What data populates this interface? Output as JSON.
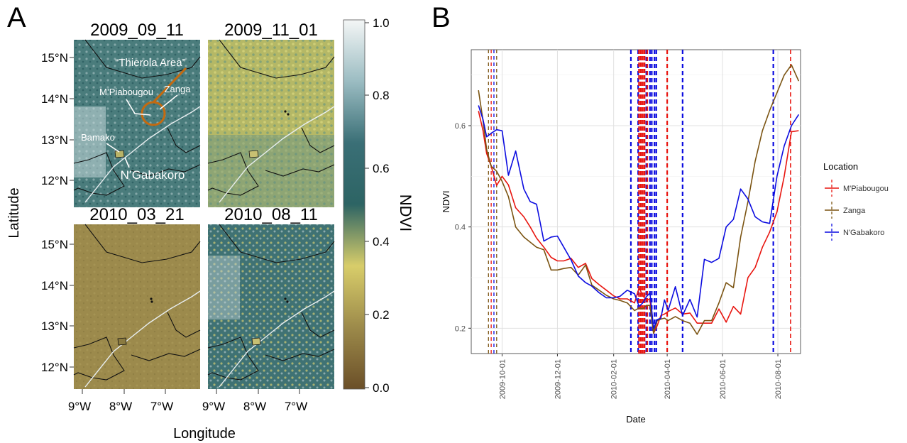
{
  "panel_a": {
    "label": "A",
    "xlabel": "Longitude",
    "ylabel": "Latitude",
    "lat_ticks": [
      "15°N",
      "14°N",
      "13°N",
      "12°N"
    ],
    "lon_ticks": [
      "9°W",
      "8°W",
      "7°W"
    ],
    "maps": [
      {
        "title": "2009_09_11",
        "style": "sep"
      },
      {
        "title": "2009_11_01",
        "style": "nov"
      },
      {
        "title": "2010_03_21",
        "style": "mar"
      },
      {
        "title": "2010_08_11",
        "style": "aug"
      }
    ],
    "annotations": {
      "thierola": "“Thierola Area”",
      "mpiabougou": "M’Piabougou",
      "zanga": "Zanga",
      "bamako": "Bamako",
      "ngabakoro": "N’Gabakoro"
    },
    "colorbar": {
      "title": "NDVI",
      "ticks": [
        "1.0",
        "0.8",
        "0.6",
        "0.4",
        "0.2",
        "0.0"
      ],
      "colors": [
        "#f4f6f6",
        "#9bbcc2",
        "#3a6f76",
        "#2d6464",
        "#d8cd6a",
        "#9c8a4a",
        "#6b4f28"
      ]
    }
  },
  "chart_data": {
    "type": "line",
    "panel_label": "B",
    "xlabel": "Date",
    "ylabel": "NDVI",
    "x_ticks": [
      "2009-10-01",
      "2009-12-01",
      "2010-02-01",
      "2010-04-01",
      "2010-06-01",
      "2010-08-01"
    ],
    "y_ticks": [
      "0.2",
      "0.4",
      "0.6"
    ],
    "ylim": [
      0.15,
      0.75
    ],
    "xlim": [
      "2009-08-28",
      "2010-08-26"
    ],
    "grid": true,
    "legend": {
      "title": "Location",
      "placement": "right"
    },
    "series": [
      {
        "name": "M'Piabougou",
        "color": "#e8150f",
        "x": [
          "2009-09-05",
          "2009-09-10",
          "2009-09-14",
          "2009-09-19",
          "2009-09-25",
          "2009-10-01",
          "2009-10-08",
          "2009-10-16",
          "2009-10-25",
          "2009-11-01",
          "2009-11-08",
          "2009-11-16",
          "2009-11-24",
          "2009-12-01",
          "2009-12-08",
          "2009-12-16",
          "2009-12-24",
          "2010-01-01",
          "2010-01-08",
          "2010-01-16",
          "2010-01-24",
          "2010-02-01",
          "2010-02-08",
          "2010-02-16",
          "2010-02-24",
          "2010-03-01",
          "2010-03-05",
          "2010-03-09",
          "2010-03-13",
          "2010-03-17",
          "2010-03-21",
          "2010-03-25",
          "2010-03-29",
          "2010-04-02",
          "2010-04-10",
          "2010-04-18",
          "2010-04-26",
          "2010-05-04",
          "2010-05-12",
          "2010-05-20",
          "2010-05-28",
          "2010-06-05",
          "2010-06-13",
          "2010-06-21",
          "2010-06-29",
          "2010-07-07",
          "2010-07-15",
          "2010-07-23",
          "2010-07-31",
          "2010-08-08",
          "2010-08-16",
          "2010-08-24"
        ],
        "values": [
          0.629,
          0.59,
          0.545,
          0.52,
          0.482,
          0.5,
          0.483,
          0.438,
          0.42,
          0.4,
          0.378,
          0.36,
          0.34,
          0.333,
          0.333,
          0.338,
          0.32,
          0.328,
          0.298,
          0.286,
          0.275,
          0.264,
          0.258,
          0.258,
          0.25,
          0.28,
          0.265,
          0.255,
          0.258,
          0.19,
          0.205,
          0.225,
          0.228,
          0.233,
          0.24,
          0.228,
          0.23,
          0.21,
          0.21,
          0.21,
          0.238,
          0.212,
          0.243,
          0.228,
          0.3,
          0.32,
          0.36,
          0.39,
          0.43,
          0.5,
          0.588,
          0.59
        ]
      },
      {
        "name": "Zanga",
        "color": "#7b5412",
        "x": [
          "2009-09-05",
          "2009-09-10",
          "2009-09-14",
          "2009-09-19",
          "2009-09-25",
          "2009-10-01",
          "2009-10-08",
          "2009-10-16",
          "2009-10-25",
          "2009-11-01",
          "2009-11-08",
          "2009-11-16",
          "2009-11-24",
          "2009-12-01",
          "2009-12-08",
          "2009-12-16",
          "2009-12-24",
          "2010-01-01",
          "2010-01-08",
          "2010-01-16",
          "2010-01-24",
          "2010-02-01",
          "2010-02-08",
          "2010-02-16",
          "2010-02-24",
          "2010-03-01",
          "2010-03-05",
          "2010-03-09",
          "2010-03-13",
          "2010-03-17",
          "2010-03-21",
          "2010-03-25",
          "2010-03-29",
          "2010-04-02",
          "2010-04-10",
          "2010-04-18",
          "2010-04-26",
          "2010-05-04",
          "2010-05-12",
          "2010-05-20",
          "2010-05-28",
          "2010-06-05",
          "2010-06-13",
          "2010-06-21",
          "2010-06-29",
          "2010-07-07",
          "2010-07-15",
          "2010-07-23",
          "2010-07-31",
          "2010-08-08",
          "2010-08-16",
          "2010-08-24"
        ],
        "values": [
          0.67,
          0.61,
          0.553,
          0.52,
          0.51,
          0.49,
          0.46,
          0.4,
          0.38,
          0.37,
          0.36,
          0.355,
          0.315,
          0.315,
          0.318,
          0.32,
          0.305,
          0.325,
          0.285,
          0.275,
          0.265,
          0.258,
          0.255,
          0.25,
          0.235,
          0.24,
          0.238,
          0.245,
          0.245,
          0.19,
          0.215,
          0.218,
          0.22,
          0.215,
          0.223,
          0.215,
          0.21,
          0.188,
          0.215,
          0.215,
          0.25,
          0.29,
          0.28,
          0.38,
          0.45,
          0.53,
          0.59,
          0.63,
          0.665,
          0.7,
          0.72,
          0.688
        ]
      },
      {
        "name": "N'Gabakoro",
        "color": "#0b0be0",
        "x": [
          "2009-09-05",
          "2009-09-10",
          "2009-09-14",
          "2009-09-19",
          "2009-09-25",
          "2009-10-01",
          "2009-10-08",
          "2009-10-16",
          "2009-10-25",
          "2009-11-01",
          "2009-11-08",
          "2009-11-16",
          "2009-11-24",
          "2009-12-01",
          "2009-12-08",
          "2009-12-16",
          "2009-12-24",
          "2010-01-01",
          "2010-01-08",
          "2010-01-16",
          "2010-01-24",
          "2010-02-01",
          "2010-02-08",
          "2010-02-16",
          "2010-02-24",
          "2010-03-01",
          "2010-03-05",
          "2010-03-09",
          "2010-03-13",
          "2010-03-17",
          "2010-03-21",
          "2010-03-25",
          "2010-03-29",
          "2010-04-02",
          "2010-04-10",
          "2010-04-18",
          "2010-04-26",
          "2010-05-04",
          "2010-05-12",
          "2010-05-20",
          "2010-05-28",
          "2010-06-05",
          "2010-06-13",
          "2010-06-21",
          "2010-06-29",
          "2010-07-07",
          "2010-07-15",
          "2010-07-23",
          "2010-07-31",
          "2010-08-08",
          "2010-08-16",
          "2010-08-24"
        ],
        "values": [
          0.64,
          0.612,
          0.578,
          0.585,
          0.592,
          0.59,
          0.502,
          0.55,
          0.475,
          0.45,
          0.445,
          0.372,
          0.38,
          0.382,
          0.36,
          0.335,
          0.303,
          0.29,
          0.283,
          0.27,
          0.26,
          0.26,
          0.263,
          0.275,
          0.268,
          0.243,
          0.25,
          0.262,
          0.27,
          0.2,
          0.217,
          0.22,
          0.256,
          0.235,
          0.282,
          0.225,
          0.257,
          0.222,
          0.336,
          0.33,
          0.338,
          0.4,
          0.415,
          0.475,
          0.455,
          0.42,
          0.41,
          0.407,
          0.5,
          0.56,
          0.6,
          0.622
        ]
      }
    ],
    "vlines": [
      {
        "series": "Zanga",
        "date": "2009-09-16",
        "width": 1.3,
        "dash": "5,4"
      },
      {
        "series": "M'Piabougou",
        "date": "2009-09-19",
        "width": 1.3,
        "dash": "5,4"
      },
      {
        "series": "N'Gabakoro",
        "date": "2009-09-22",
        "width": 1.3,
        "dash": "5,4"
      },
      {
        "series": "Zanga",
        "date": "2009-09-25",
        "width": 1.3,
        "dash": "5,4"
      },
      {
        "series": "N'Gabakoro",
        "date": "2010-02-20",
        "width": 2.2,
        "dash": "6,4"
      },
      {
        "series": "N'Gabakoro",
        "date": "2010-02-28",
        "width": 2.2,
        "dash": "6,4"
      },
      {
        "series": "M'Piabougou",
        "date": "2010-03-01",
        "width": 2.4,
        "dash": "6,3"
      },
      {
        "series": "M'Piabougou",
        "date": "2010-03-03",
        "width": 2.4,
        "dash": "6,3"
      },
      {
        "series": "M'Piabougou",
        "date": "2010-03-05",
        "width": 2.4,
        "dash": "6,3"
      },
      {
        "series": "M'Piabougou",
        "date": "2010-03-07",
        "width": 2.4,
        "dash": "6,3"
      },
      {
        "series": "N'Gabakoro",
        "date": "2010-03-09",
        "width": 2.2,
        "dash": "6,4"
      },
      {
        "series": "M'Piabougou",
        "date": "2010-03-10",
        "width": 2.2,
        "dash": "6,4"
      },
      {
        "series": "N'Gabakoro",
        "date": "2010-03-13",
        "width": 2.2,
        "dash": "6,4"
      },
      {
        "series": "N'Gabakoro",
        "date": "2010-03-15",
        "width": 2.2,
        "dash": "6,4"
      },
      {
        "series": "N'Gabakoro",
        "date": "2010-03-18",
        "width": 2.2,
        "dash": "6,4"
      },
      {
        "series": "N'Gabakoro",
        "date": "2010-03-20",
        "width": 2.2,
        "dash": "6,4"
      },
      {
        "series": "M'Piabougou",
        "date": "2010-04-01",
        "width": 2.2,
        "dash": "6,4"
      },
      {
        "series": "N'Gabakoro",
        "date": "2010-04-18",
        "width": 2.2,
        "dash": "6,4"
      },
      {
        "series": "N'Gabakoro",
        "date": "2010-07-27",
        "width": 2.2,
        "dash": "6,4"
      },
      {
        "series": "M'Piabougou",
        "date": "2010-08-15",
        "width": 1.6,
        "dash": "6,4"
      }
    ]
  }
}
